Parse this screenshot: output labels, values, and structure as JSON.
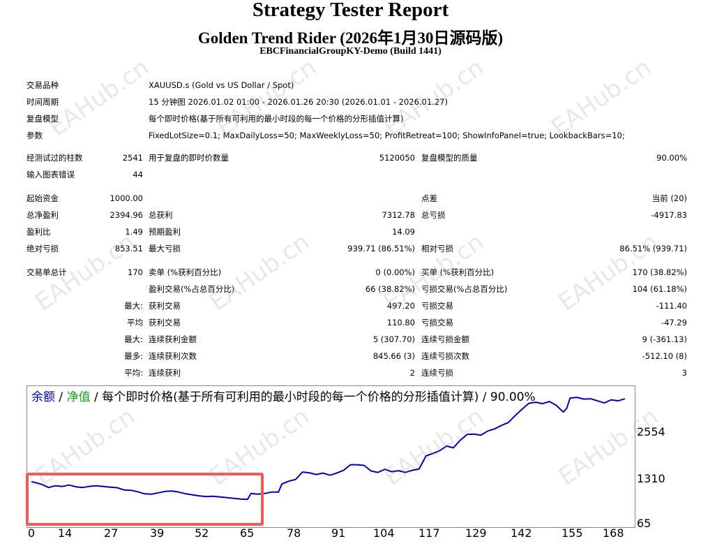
{
  "header": {
    "title": "Strategy Tester Report",
    "subtitle": "Golden Trend Rider (2026年1月30日源码版)",
    "server": "EBCFinancialGroupKY-Demo (Build 1441)"
  },
  "settings": {
    "symbol_label": "交易品种",
    "symbol_value": "XAUUSD.s (Gold vs US Dollar / Spot)",
    "period_label": "时间周期",
    "period_value": "15 分钟图 2026.01.02 01:00 - 2026.01.26 20:30 (2026.01.01 - 2026.01.27)",
    "model_label": "复盘模型",
    "model_value": "每个即时价格(基于所有可利用的最小时段的每一个价格的分形插值计算)",
    "params_label": "参数",
    "params_value": "FixedLotSize=0.1; MaxDailyLoss=50; MaxWeeklyLoss=50; ProfitRetreat=100; ShowInfoPanel=true; LookbackBars=10;"
  },
  "quality": {
    "bars_label": "经测试过的柱数",
    "bars_value": "2541",
    "ticks_label": "用于复盘的即时价数量",
    "ticks_value": "5120050",
    "quality_label": "复盘模型的质量",
    "quality_value": "90.00%",
    "errors_label": "输入图表错误",
    "errors_value": "44"
  },
  "results": {
    "deposit_label": "起始资金",
    "deposit_value": "1000.00",
    "spread_label": "点差",
    "spread_value": "当前 (20)",
    "net_label": "总净盈利",
    "net_value": "2394.96",
    "gross_profit_label": "总获利",
    "gross_profit_value": "7312.78",
    "gross_loss_label": "总亏损",
    "gross_loss_value": "-4917.83",
    "pf_label": "盈利比",
    "pf_value": "1.49",
    "payoff_label": "预期盈利",
    "payoff_value": "14.09",
    "abs_dd_label": "绝对亏损",
    "abs_dd_value": "853.51",
    "max_dd_label": "最大亏损",
    "max_dd_value": "939.71 (86.51%)",
    "rel_dd_label": "相对亏损",
    "rel_dd_value": "86.51% (939.71)"
  },
  "trades": {
    "total_label": "交易单总计",
    "total_value": "170",
    "short_label": "卖单 (%获利百分比)",
    "short_value": "0 (0.00%)",
    "long_label": "买单 (%获利百分比)",
    "long_value": "170 (38.82%)",
    "profit_trades_label": "盈利交易(%占总百分比)",
    "profit_trades_value": "66 (38.82%)",
    "loss_trades_label": "亏损交易(%占总百分比)",
    "loss_trades_value": "104 (61.18%)",
    "max_label": "最大:",
    "largest_profit_label": "获利交易",
    "largest_profit_value": "497.20",
    "largest_loss_label": "亏损交易",
    "largest_loss_value": "-111.40",
    "avg_label": "平均",
    "avg_profit_label": "获利交易",
    "avg_profit_value": "110.80",
    "avg_loss_label": "亏损交易",
    "avg_loss_value": "-47.29",
    "max2_label": "最大:",
    "max_cons_wins_label": "连续获利金额",
    "max_cons_wins_value": "5 (307.70)",
    "max_cons_losses_label": "连续亏损金额",
    "max_cons_losses_value": "9 (-361.13)",
    "most_label": "最多:",
    "max_cons_profit_label": "连续获利次数",
    "max_cons_profit_value": "845.66 (3)",
    "max_cons_loss_label": "连续亏损次数",
    "max_cons_loss_value": "-512.10 (8)",
    "avg2_label": "平均:",
    "avg_cons_wins_label": "连续获利",
    "avg_cons_wins_value": "2",
    "avg_cons_losses_label": "连续亏损",
    "avg_cons_losses_value": "3"
  },
  "chart_caption": {
    "balance": "余额",
    "sep1": " / ",
    "equity": "净值",
    "rest": " / 每个即时价格(基于所有可利用的最小时段的每一个价格的分形插值计算) / 90.00%"
  },
  "watermark": "EAHub.cn",
  "colors": {
    "balance": "#0000b0",
    "equity": "#1aa01a",
    "highlight": "#f05a5a"
  },
  "chart_data": {
    "type": "line",
    "x_ticks": [
      "0",
      "14",
      "27",
      "39",
      "52",
      "65",
      "78",
      "91",
      "104",
      "117",
      "129",
      "142",
      "155",
      "168"
    ],
    "y_ticks": [
      "2554",
      "1310",
      "65"
    ],
    "series": [
      {
        "name": "余额",
        "values": [
          [
            0,
            1120
          ],
          [
            3,
            1040
          ],
          [
            5,
            950
          ],
          [
            7,
            1000
          ],
          [
            9,
            980
          ],
          [
            11,
            1020
          ],
          [
            13,
            970
          ],
          [
            15,
            950
          ],
          [
            17,
            985
          ],
          [
            19,
            1000
          ],
          [
            21,
            980
          ],
          [
            23,
            960
          ],
          [
            25,
            945
          ],
          [
            27,
            880
          ],
          [
            29,
            870
          ],
          [
            31,
            830
          ],
          [
            33,
            770
          ],
          [
            35,
            760
          ],
          [
            37,
            800
          ],
          [
            39,
            840
          ],
          [
            41,
            850
          ],
          [
            43,
            820
          ],
          [
            45,
            770
          ],
          [
            47,
            740
          ],
          [
            49,
            710
          ],
          [
            51,
            690
          ],
          [
            53,
            700
          ],
          [
            55,
            680
          ],
          [
            57,
            660
          ],
          [
            59,
            640
          ],
          [
            61,
            620
          ],
          [
            63,
            610
          ],
          [
            64,
            780
          ],
          [
            66,
            760
          ],
          [
            68,
            780
          ],
          [
            70,
            820
          ],
          [
            72,
            820
          ],
          [
            73,
            1050
          ],
          [
            75,
            1130
          ],
          [
            77,
            1180
          ],
          [
            79,
            1390
          ],
          [
            81,
            1370
          ],
          [
            83,
            1320
          ],
          [
            85,
            1360
          ],
          [
            87,
            1300
          ],
          [
            89,
            1360
          ],
          [
            91,
            1440
          ],
          [
            93,
            1600
          ],
          [
            95,
            1600
          ],
          [
            97,
            1580
          ],
          [
            99,
            1420
          ],
          [
            101,
            1380
          ],
          [
            103,
            1470
          ],
          [
            105,
            1400
          ],
          [
            107,
            1430
          ],
          [
            109,
            1380
          ],
          [
            111,
            1440
          ],
          [
            113,
            1480
          ],
          [
            115,
            1850
          ],
          [
            117,
            1920
          ],
          [
            119,
            2000
          ],
          [
            121,
            2130
          ],
          [
            123,
            2080
          ],
          [
            125,
            2300
          ],
          [
            127,
            2460
          ],
          [
            129,
            2470
          ],
          [
            131,
            2440
          ],
          [
            133,
            2560
          ],
          [
            135,
            2620
          ],
          [
            137,
            2720
          ],
          [
            139,
            2800
          ],
          [
            141,
            3000
          ],
          [
            143,
            3180
          ],
          [
            145,
            3350
          ],
          [
            147,
            3380
          ],
          [
            149,
            3340
          ],
          [
            151,
            3400
          ],
          [
            153,
            3290
          ],
          [
            155,
            3100
          ],
          [
            156,
            3200
          ],
          [
            157,
            3500
          ],
          [
            159,
            3520
          ],
          [
            161,
            3470
          ],
          [
            163,
            3480
          ],
          [
            165,
            3420
          ],
          [
            167,
            3360
          ],
          [
            169,
            3450
          ],
          [
            171,
            3420
          ],
          [
            173,
            3480
          ]
        ]
      }
    ]
  }
}
